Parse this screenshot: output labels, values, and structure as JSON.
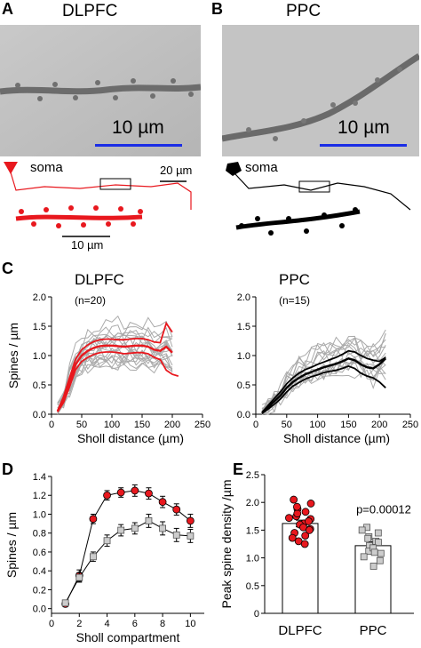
{
  "panels": {
    "A": {
      "label": "A",
      "title": "DLPFC",
      "photo_scale": "10 µm",
      "soma": "soma",
      "trace_scale": "20 µm",
      "zoom_scale": "10 µm"
    },
    "B": {
      "label": "B",
      "title": "PPC",
      "photo_scale": "10 µm",
      "soma": "soma"
    },
    "C_label": "C",
    "D_label": "D",
    "E_label": "E"
  },
  "colors": {
    "dlpfc": "#e8181e",
    "ppc": "#000000",
    "gray": "#aaaaaa",
    "scalebar": "#1a2de6"
  },
  "chart_data": [
    {
      "id": "C-left",
      "type": "line",
      "title": "DLPFC",
      "subtitle": "(n=20)",
      "xlabel": "Sholl distance (µm)",
      "ylabel": "Spines / µm",
      "xlim": [
        0,
        250
      ],
      "ylim": [
        0,
        2.0
      ],
      "xticks": [
        0,
        50,
        100,
        150,
        200,
        250
      ],
      "yticks": [
        0.0,
        0.5,
        1.0,
        1.5,
        2.0
      ],
      "x": [
        10,
        20,
        30,
        40,
        50,
        60,
        70,
        80,
        90,
        100,
        110,
        120,
        130,
        140,
        150,
        160,
        170,
        180,
        190,
        200,
        210
      ],
      "series": [
        {
          "role": "mean",
          "values": [
            0.05,
            0.25,
            0.55,
            0.85,
            1.0,
            1.08,
            1.13,
            1.16,
            1.17,
            1.17,
            1.16,
            1.15,
            1.16,
            1.17,
            1.17,
            1.15,
            1.1,
            1.08,
            1.15,
            1.05,
            null
          ]
        },
        {
          "role": "upper",
          "values": [
            0.06,
            0.3,
            0.63,
            0.94,
            1.1,
            1.18,
            1.24,
            1.27,
            1.28,
            1.28,
            1.27,
            1.27,
            1.28,
            1.29,
            1.29,
            1.27,
            1.23,
            1.22,
            1.55,
            1.4,
            null
          ]
        },
        {
          "role": "lower",
          "values": [
            0.04,
            0.2,
            0.47,
            0.76,
            0.9,
            0.97,
            1.02,
            1.05,
            1.06,
            1.06,
            1.05,
            1.03,
            1.04,
            1.05,
            1.05,
            1.03,
            0.97,
            0.93,
            0.75,
            0.68,
            0.65
          ]
        }
      ],
      "individual_lines": 20
    },
    {
      "id": "C-right",
      "type": "line",
      "title": "PPC",
      "subtitle": "(n=15)",
      "xlabel": "Sholl distance (µm)",
      "ylabel": "",
      "xlim": [
        0,
        250
      ],
      "ylim": [
        0,
        2.0
      ],
      "xticks": [
        0,
        50,
        100,
        150,
        200,
        250
      ],
      "yticks": [
        0.0,
        0.5,
        1.0,
        1.5,
        2.0
      ],
      "x": [
        10,
        20,
        30,
        40,
        50,
        60,
        70,
        80,
        90,
        100,
        110,
        120,
        130,
        140,
        150,
        160,
        170,
        180,
        190,
        200,
        210
      ],
      "series": [
        {
          "role": "mean",
          "values": [
            0.02,
            0.12,
            0.22,
            0.32,
            0.45,
            0.55,
            0.62,
            0.68,
            0.72,
            0.76,
            0.8,
            0.83,
            0.86,
            0.9,
            0.95,
            0.92,
            0.85,
            0.8,
            0.78,
            0.85,
            0.95
          ]
        },
        {
          "role": "upper",
          "values": [
            0.03,
            0.15,
            0.27,
            0.38,
            0.52,
            0.62,
            0.7,
            0.76,
            0.8,
            0.85,
            0.89,
            0.93,
            0.97,
            1.02,
            1.08,
            1.06,
            1.0,
            0.95,
            0.92,
            0.9,
            0.97
          ]
        },
        {
          "role": "lower",
          "values": [
            0.01,
            0.09,
            0.17,
            0.26,
            0.38,
            0.48,
            0.54,
            0.6,
            0.64,
            0.67,
            0.71,
            0.73,
            0.75,
            0.78,
            0.82,
            0.78,
            0.7,
            0.65,
            0.62,
            0.55,
            0.45
          ]
        }
      ],
      "individual_lines": 15
    },
    {
      "id": "D",
      "type": "line",
      "xlabel": "Sholl compartment",
      "ylabel": "Spines / µm",
      "xlim": [
        0,
        11
      ],
      "ylim": [
        -0.05,
        1.4
      ],
      "xticks": [
        0,
        2,
        4,
        6,
        8,
        10
      ],
      "yticks": [
        0.0,
        0.2,
        0.4,
        0.6,
        0.8,
        1.0,
        1.2,
        1.4
      ],
      "x": [
        1,
        2,
        3,
        4,
        5,
        6,
        7,
        8,
        9,
        10
      ],
      "series": [
        {
          "group": "DLPFC",
          "values": [
            0.05,
            0.35,
            0.95,
            1.2,
            1.23,
            1.25,
            1.22,
            1.13,
            1.05,
            0.93
          ],
          "err": [
            0.03,
            0.06,
            0.05,
            0.05,
            0.05,
            0.06,
            0.06,
            0.06,
            0.06,
            0.07
          ]
        },
        {
          "group": "PPC",
          "values": [
            0.06,
            0.33,
            0.55,
            0.72,
            0.83,
            0.85,
            0.93,
            0.85,
            0.78,
            0.77
          ],
          "err": [
            0.03,
            0.05,
            0.05,
            0.06,
            0.06,
            0.06,
            0.07,
            0.07,
            0.07,
            0.07
          ]
        }
      ]
    },
    {
      "id": "E",
      "type": "bar",
      "categories": [
        "DLPFC",
        "PPC"
      ],
      "values": [
        1.62,
        1.22
      ],
      "err": [
        0.06,
        0.07
      ],
      "ylabel": "Peak spine density /µm",
      "ylim": [
        0,
        2.5
      ],
      "yticks": [
        0,
        0.5,
        1.0,
        1.5,
        2.0,
        2.5
      ],
      "annotation": "p=0.00012",
      "points": [
        [
          1.75,
          2.05,
          1.52,
          1.88,
          1.62,
          1.45,
          1.98,
          1.3,
          1.8,
          1.6,
          1.7,
          1.4,
          1.92,
          1.55,
          1.25,
          1.72,
          1.5,
          1.83,
          1.66,
          1.36
        ],
        [
          1.55,
          1.38,
          1.08,
          1.3,
          0.95,
          1.22,
          1.12,
          1.45,
          1.02,
          1.28,
          1.18,
          0.85,
          1.35,
          1.1,
          1.5
        ]
      ]
    }
  ]
}
